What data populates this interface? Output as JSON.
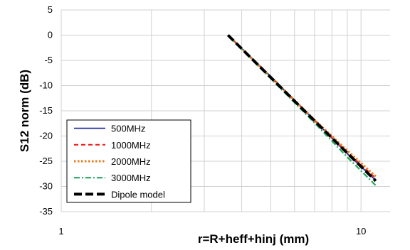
{
  "chart_data": {
    "type": "line",
    "title": "",
    "xlabel": "r=R+heff+hinj (mm)",
    "ylabel": "S12 norm (dB)",
    "xscale": "log",
    "xlim": [
      1,
      12.5
    ],
    "ylim": [
      -35,
      5
    ],
    "xticks": [
      {
        "value": 1,
        "label": "1"
      },
      {
        "value": 10,
        "label": "10"
      }
    ],
    "yticks": [
      5,
      0,
      -5,
      -10,
      -15,
      -20,
      -25,
      -30,
      -35
    ],
    "grid": true,
    "legend_position": "bottom-left",
    "series": [
      {
        "name": "500MHz",
        "color": "#1f2fa0",
        "dash": "solid",
        "x": [
          3.6,
          5.0,
          7.0,
          9.0,
          11.2
        ],
        "y": [
          0,
          -8.2,
          -16.9,
          -23.5,
          -28.8
        ]
      },
      {
        "name": "1000MHz",
        "color": "#e8201a",
        "dash": "dash",
        "x": [
          3.6,
          5.0,
          7.0,
          9.0,
          11.2
        ],
        "y": [
          0,
          -8.2,
          -16.9,
          -23.2,
          -28.4
        ]
      },
      {
        "name": "2000MHz",
        "color": "#f07a1a",
        "dash": "dot",
        "x": [
          3.6,
          5.0,
          7.0,
          9.0,
          11.2
        ],
        "y": [
          0,
          -8.3,
          -16.8,
          -22.9,
          -28.0
        ]
      },
      {
        "name": "3000MHz",
        "color": "#22a85a",
        "dash": "dashdot",
        "x": [
          3.6,
          5.0,
          7.0,
          9.0,
          11.2
        ],
        "y": [
          0,
          -8.6,
          -17.4,
          -24.2,
          -29.8
        ]
      },
      {
        "name": "Dipole model",
        "color": "#000000",
        "dash": "longdash",
        "x": [
          3.6,
          5.0,
          7.0,
          9.0,
          11.2
        ],
        "y": [
          0,
          -8.4,
          -17.0,
          -23.4,
          -28.9
        ]
      }
    ]
  }
}
